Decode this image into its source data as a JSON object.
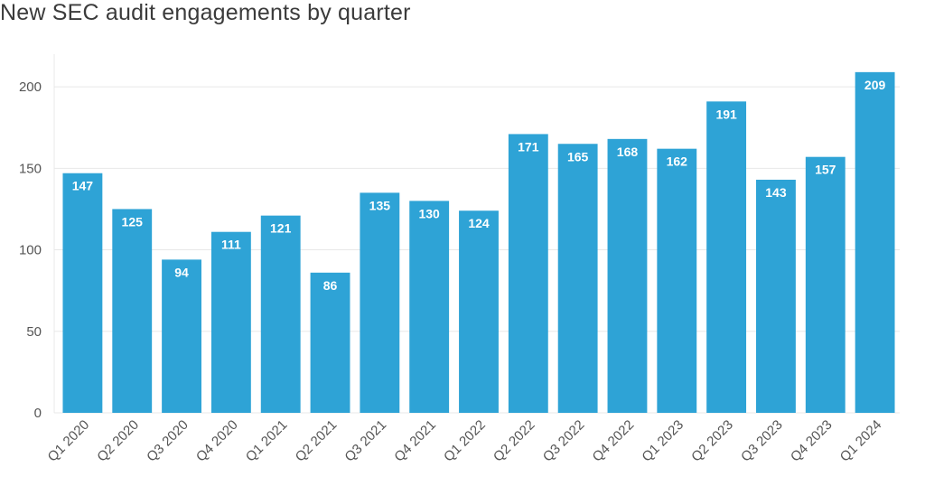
{
  "chart_data": {
    "type": "bar",
    "title": "New SEC audit engagements by quarter",
    "xlabel": "",
    "ylabel": "",
    "categories": [
      "Q1 2020",
      "Q2 2020",
      "Q3 2020",
      "Q4 2020",
      "Q1 2021",
      "Q2 2021",
      "Q3 2021",
      "Q4 2021",
      "Q1 2022",
      "Q2 2022",
      "Q3 2022",
      "Q4 2022",
      "Q1 2023",
      "Q2 2023",
      "Q3 2023",
      "Q4 2023",
      "Q1 2024"
    ],
    "values": [
      147,
      125,
      94,
      111,
      121,
      86,
      135,
      130,
      124,
      171,
      165,
      168,
      162,
      191,
      143,
      157,
      209
    ],
    "yticks": [
      "0",
      "50",
      "100",
      "150",
      "200"
    ],
    "ylim": [
      0,
      220
    ],
    "grid": true,
    "legend": "none",
    "bar_color": "#2ea3d6",
    "label_color": "#ffffff",
    "grid_color": "#e8e8e8"
  }
}
